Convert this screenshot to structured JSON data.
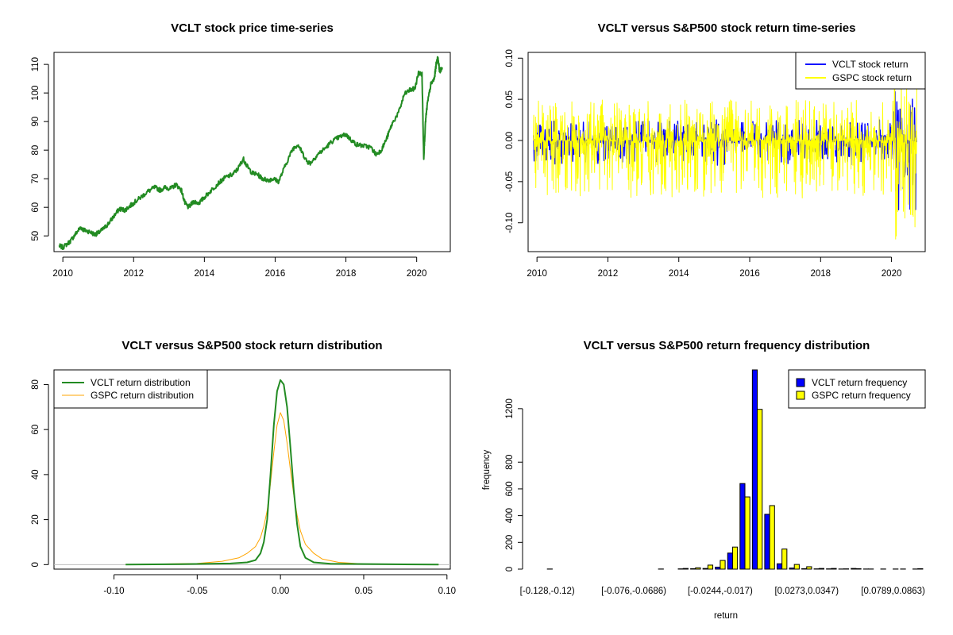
{
  "chart_data": [
    {
      "type": "line",
      "title": "VCLT stock price time-series",
      "xlabel": "",
      "ylabel": "",
      "xlim": [
        2009.75,
        2020.95
      ],
      "ylim": [
        44.5,
        114.2
      ],
      "x_ticks": [
        "2010",
        "2012",
        "2014",
        "2016",
        "2018",
        "2020"
      ],
      "y_ticks": [
        "50",
        "60",
        "70",
        "80",
        "90",
        "100",
        "110"
      ],
      "color": "#228b22",
      "series": [
        {
          "x": [
            2009.9,
            2010.0,
            2010.2,
            2010.35,
            2010.5,
            2010.6,
            2010.75,
            2010.9,
            2011.0,
            2011.15,
            2011.3,
            2011.45,
            2011.6,
            2011.75,
            2011.9,
            2012.0,
            2012.2,
            2012.4,
            2012.6,
            2012.75,
            2012.9,
            2013.05,
            2013.2,
            2013.35,
            2013.45,
            2013.55,
            2013.7,
            2013.85,
            2014.0,
            2014.2,
            2014.4,
            2014.6,
            2014.8,
            2014.95,
            2015.1,
            2015.2,
            2015.35,
            2015.5,
            2015.65,
            2015.8,
            2015.95,
            2016.1,
            2016.3,
            2016.5,
            2016.65,
            2016.75,
            2016.9,
            2017.0,
            2017.2,
            2017.4,
            2017.6,
            2017.8,
            2018.0,
            2018.15,
            2018.3,
            2018.5,
            2018.7,
            2018.85,
            2019.0,
            2019.15,
            2019.3,
            2019.5,
            2019.65,
            2019.8,
            2019.95,
            2020.05,
            2020.15,
            2020.2,
            2020.25,
            2020.3,
            2020.4,
            2020.5,
            2020.55,
            2020.6,
            2020.65,
            2020.72
          ],
          "y": [
            46.5,
            46.0,
            48.0,
            50.5,
            53.0,
            52.0,
            51.5,
            50.5,
            51.0,
            52.5,
            54.5,
            57.0,
            59.5,
            59.0,
            60.5,
            61.5,
            63.5,
            65.5,
            67.0,
            66.0,
            67.0,
            66.5,
            68.0,
            66.0,
            61.5,
            60.0,
            62.0,
            61.5,
            63.5,
            66.0,
            68.5,
            70.5,
            71.5,
            73.5,
            77.0,
            74.5,
            72.0,
            71.5,
            70.0,
            69.5,
            70.0,
            69.0,
            75.0,
            80.5,
            82.0,
            79.5,
            76.0,
            75.5,
            78.5,
            80.5,
            83.0,
            84.5,
            85.5,
            83.5,
            82.0,
            81.5,
            81.0,
            78.5,
            80.0,
            84.0,
            89.0,
            93.5,
            99.5,
            101.0,
            101.5,
            107.0,
            106.5,
            77.5,
            90.0,
            96.0,
            103.0,
            105.0,
            110.0,
            112.5,
            107.5,
            109.0
          ]
        }
      ]
    },
    {
      "type": "line",
      "title": "VCLT versus S&P500 stock return time-series",
      "xlabel": "",
      "ylabel": "",
      "xlim": [
        2009.75,
        2020.95
      ],
      "ylim": [
        -0.135,
        0.107
      ],
      "x_ticks": [
        "2010",
        "2012",
        "2014",
        "2016",
        "2018",
        "2020"
      ],
      "y_ticks": [
        "-0.10",
        "-0.05",
        "0.00",
        "0.05",
        "0.10"
      ],
      "legend": {
        "position": "top-right",
        "entries": [
          "VCLT stock return",
          "GSPC stock return"
        ],
        "colors": [
          "#0000ff",
          "#ffff00"
        ]
      },
      "series": [
        {
          "name": "VCLT stock return",
          "color": "#0000ff",
          "x": [
            2009.9,
            2020.72
          ],
          "y_range_by_period": [
            {
              "x0": 2009.9,
              "x1": 2020.05,
              "lo": -0.03,
              "hi": 0.025
            },
            {
              "x0": 2020.05,
              "x1": 2020.72,
              "lo": -0.09,
              "hi": 0.06
            }
          ]
        },
        {
          "name": "GSPC stock return",
          "color": "#ffff00",
          "x": [
            2009.9,
            2020.72
          ],
          "y_range_by_period": [
            {
              "x0": 2009.9,
              "x1": 2020.05,
              "lo": -0.07,
              "hi": 0.05
            },
            {
              "x0": 2020.05,
              "x1": 2020.72,
              "lo": -0.128,
              "hi": 0.09
            }
          ]
        }
      ]
    },
    {
      "type": "line",
      "title": "VCLT versus S&P500 stock return distribution",
      "xlabel": "",
      "ylabel": "",
      "xlim": [
        -0.136,
        0.102
      ],
      "ylim": [
        -2.0,
        86.5
      ],
      "x_ticks": [
        "-0.10",
        "-0.05",
        "0.00",
        "0.05",
        "0.10"
      ],
      "y_ticks": [
        "0",
        "20",
        "40",
        "60",
        "80"
      ],
      "legend": {
        "position": "top-left",
        "entries": [
          "VCLT return distribution",
          "GSPC return distribution"
        ],
        "colors": [
          "#228b22",
          "#ffa500"
        ]
      },
      "series": [
        {
          "name": "VCLT return distribution",
          "color": "#228b22",
          "x": [
            -0.093,
            -0.06,
            -0.03,
            -0.02,
            -0.015,
            -0.012,
            -0.01,
            -0.008,
            -0.006,
            -0.004,
            -0.002,
            0.0,
            0.002,
            0.004,
            0.006,
            0.008,
            0.01,
            0.012,
            0.015,
            0.02,
            0.03,
            0.06,
            0.095
          ],
          "y": [
            0,
            0.2,
            0.5,
            1.0,
            2.0,
            5.0,
            10.0,
            20.0,
            40.0,
            62.0,
            77.0,
            82.0,
            80.0,
            70.0,
            52.0,
            33.0,
            18.0,
            8.0,
            3.0,
            1.0,
            0.4,
            0.2,
            0
          ]
        },
        {
          "name": "GSPC return distribution",
          "color": "#ffa500",
          "x": [
            -0.093,
            -0.05,
            -0.035,
            -0.025,
            -0.02,
            -0.015,
            -0.012,
            -0.01,
            -0.008,
            -0.006,
            -0.004,
            -0.002,
            0.0,
            0.002,
            0.004,
            0.006,
            0.008,
            0.01,
            0.012,
            0.015,
            0.02,
            0.025,
            0.035,
            0.05,
            0.095
          ],
          "y": [
            0,
            0.5,
            1.5,
            3.0,
            5.0,
            8.0,
            12.0,
            17.0,
            24.0,
            36.0,
            50.0,
            62.0,
            67.5,
            64.0,
            54.0,
            42.0,
            31.0,
            22.0,
            15.0,
            9.0,
            5.0,
            2.5,
            1.0,
            0.3,
            0
          ]
        }
      ]
    },
    {
      "type": "bar",
      "title": "VCLT versus S&P500 return frequency distribution",
      "xlabel": "return",
      "ylabel": "frequency",
      "ylim": [
        0,
        1490
      ],
      "y_ticks": [
        "0",
        "200",
        "400",
        "600",
        "800",
        "1200"
      ],
      "x_tick_labels": [
        {
          "label": "[-0.128,-0.12)",
          "bin": 0
        },
        {
          "label": "[-0.076,-0.0686)",
          "bin": 7
        },
        {
          "label": "[-0.0244,-0.017)",
          "bin": 14
        },
        {
          "label": "[0.0273,0.0347)",
          "bin": 21
        },
        {
          "label": "[0.0789,0.0863)",
          "bin": 28
        }
      ],
      "legend": {
        "position": "top-right",
        "entries": [
          "VCLT return frequency",
          "GSPC return frequency"
        ],
        "colors": [
          "#0000ff",
          "#ffff00"
        ]
      },
      "series": [
        {
          "name": "VCLT return frequency",
          "color": "#0000ff",
          "values": [
            0,
            0,
            0,
            0,
            0,
            0,
            0,
            0,
            0,
            0,
            0,
            2,
            3,
            5,
            15,
            120,
            640,
            1490,
            410,
            40,
            8,
            3,
            2,
            2,
            1,
            5,
            1,
            0,
            0,
            1,
            1,
            0
          ]
        },
        {
          "name": "GSPC return frequency",
          "color": "#ffff00",
          "values": [
            1,
            0,
            0,
            0,
            0,
            0,
            0,
            0,
            0,
            1,
            0,
            5,
            10,
            30,
            65,
            165,
            540,
            1195,
            475,
            150,
            35,
            18,
            5,
            5,
            2,
            3,
            1,
            1,
            1,
            0,
            3,
            0
          ]
        }
      ]
    }
  ]
}
